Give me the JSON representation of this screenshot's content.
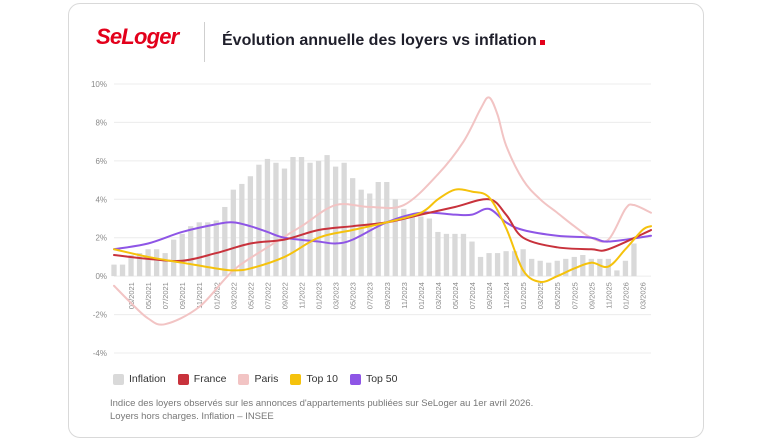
{
  "header": {
    "brand": "SeLoger",
    "title": "Évolution annuelle des loyers vs inflation"
  },
  "colors": {
    "brand": "#e3001b",
    "inflation": "#d9d9d9",
    "france": "#c8323c",
    "paris": "#f2c4c4",
    "top10": "#f5c20c",
    "top50": "#8e55e6",
    "grid": "#ececec",
    "tick": "#8a8a8a"
  },
  "legend": {
    "inflation": "Inflation",
    "france": "France",
    "paris": "Paris",
    "top10": "Top 10",
    "top50": "Top 50"
  },
  "footnote": {
    "line1": "Indice des loyers observés sur les annonces d'appartements publiées sur SeLoger au 1er avril 2026.",
    "line2": "Loyers hors charges. Inflation – INSEE"
  },
  "chart_data": {
    "type": "bar+line",
    "title": "Évolution annuelle des loyers vs inflation",
    "ylim": [
      -4,
      10
    ],
    "y_ticks": [
      "10%",
      "8%",
      "6%",
      "4%",
      "2%",
      "0%",
      "-2%",
      "-4%"
    ],
    "y_tick_values": [
      10,
      8,
      6,
      4,
      2,
      0,
      -2,
      -4
    ],
    "x_tick_labels": [
      "03/2021",
      "05/2021",
      "07/2021",
      "09/2021",
      "11/2021",
      "01/2022",
      "03/2022",
      "05/2022",
      "07/2022",
      "09/2022",
      "11/2022",
      "01/2023",
      "03/2023",
      "05/2023",
      "07/2023",
      "09/2023",
      "11/2023",
      "01/2024",
      "03/2024",
      "05/2024",
      "07/2024",
      "09/2024",
      "11/2024",
      "01/2025",
      "03/2025",
      "05/2025",
      "07/2025",
      "09/2025",
      "11/2025",
      "01/2026",
      "03/2026"
    ],
    "x_tick_months": [
      2,
      4,
      6,
      8,
      10,
      12,
      14,
      16,
      18,
      20,
      22,
      24,
      26,
      28,
      30,
      32,
      34,
      36,
      38,
      40,
      42,
      44,
      46,
      48,
      50,
      52,
      54,
      56,
      58,
      60,
      62
    ],
    "bars": {
      "name": "Inflation",
      "start_month": 0,
      "values": [
        0.6,
        0.6,
        1.1,
        1.2,
        1.4,
        1.4,
        1.2,
        1.9,
        2.2,
        2.6,
        2.8,
        2.8,
        2.9,
        3.6,
        4.5,
        4.8,
        5.2,
        5.8,
        6.1,
        5.9,
        5.6,
        6.2,
        6.2,
        5.9,
        6.0,
        6.3,
        5.7,
        5.9,
        5.1,
        4.5,
        4.3,
        4.9,
        4.9,
        4.0,
        3.5,
        3.1,
        3.1,
        3.0,
        2.3,
        2.2,
        2.2,
        2.2,
        1.8,
        1.0,
        1.2,
        1.2,
        1.3,
        1.3,
        1.4,
        0.9,
        0.8,
        0.7,
        0.8,
        0.9,
        1.0,
        1.1,
        0.9,
        0.9,
        0.9,
        0.3,
        0.8,
        1.7
      ]
    },
    "series": [
      {
        "name": "France",
        "months": [
          0,
          4,
          8,
          12,
          16,
          20,
          24,
          28,
          32,
          36,
          40,
          44,
          46,
          48,
          52,
          56,
          58,
          63
        ],
        "values": [
          1.1,
          0.9,
          0.8,
          1.2,
          1.7,
          1.9,
          2.4,
          2.6,
          2.8,
          3.2,
          3.6,
          4.0,
          3.2,
          2.0,
          1.5,
          1.4,
          1.4,
          2.4
        ]
      },
      {
        "name": "Paris",
        "months": [
          0,
          2,
          4,
          6,
          10,
          14,
          18,
          22,
          26,
          30,
          34,
          38,
          41,
          43,
          44,
          45,
          46,
          48,
          50,
          52,
          54,
          56,
          58,
          60,
          61,
          63
        ],
        "values": [
          -0.5,
          -1.4,
          -2.2,
          -2.5,
          -1.6,
          0.3,
          1.5,
          2.6,
          3.7,
          3.6,
          3.7,
          5.3,
          7.0,
          8.7,
          9.3,
          8.4,
          6.8,
          5.0,
          4.0,
          3.3,
          2.6,
          2.0,
          1.9,
          3.5,
          3.7,
          3.3
        ]
      },
      {
        "name": "Top 10",
        "months": [
          0,
          4,
          8,
          12,
          14,
          16,
          20,
          24,
          28,
          32,
          36,
          38,
          40,
          42,
          44,
          46,
          48,
          50,
          52,
          54,
          56,
          58,
          60,
          62,
          63
        ],
        "values": [
          1.4,
          1.0,
          0.7,
          0.4,
          0.3,
          0.4,
          1.0,
          2.0,
          2.4,
          2.8,
          3.3,
          4.0,
          4.5,
          4.4,
          4.1,
          2.5,
          0.3,
          -0.3,
          0.0,
          0.4,
          0.7,
          0.5,
          1.4,
          2.4,
          2.6
        ]
      },
      {
        "name": "Top 50",
        "months": [
          0,
          4,
          8,
          12,
          14,
          16,
          18,
          20,
          24,
          26,
          28,
          32,
          36,
          40,
          42,
          44,
          46,
          48,
          52,
          56,
          58,
          63
        ],
        "values": [
          1.4,
          1.7,
          2.3,
          2.7,
          2.8,
          2.6,
          2.3,
          2.0,
          1.8,
          1.7,
          1.9,
          2.8,
          3.3,
          3.2,
          3.2,
          3.5,
          2.8,
          2.4,
          2.1,
          2.0,
          1.8,
          2.1
        ]
      }
    ]
  }
}
